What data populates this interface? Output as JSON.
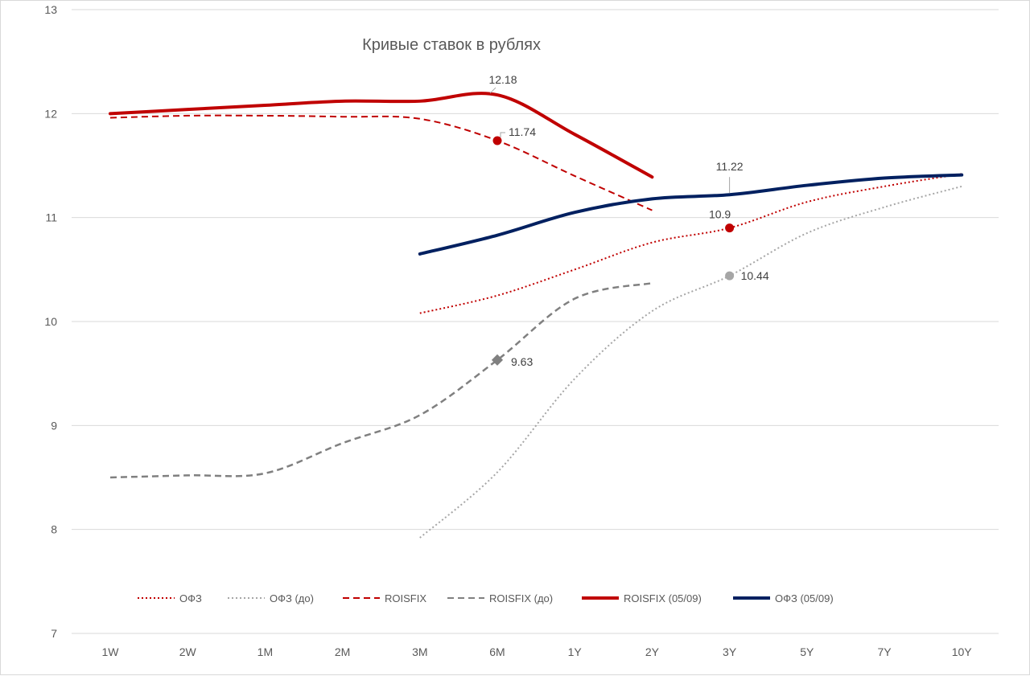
{
  "chart_data": {
    "type": "line",
    "title": "Кривые ставок в рублях",
    "xlabel": "",
    "ylabel": "",
    "categories": [
      "1W",
      "2W",
      "1M",
      "2M",
      "3M",
      "6M",
      "1Y",
      "2Y",
      "3Y",
      "5Y",
      "7Y",
      "10Y"
    ],
    "y_ticks": [
      "7",
      "8",
      "9",
      "10",
      "11",
      "12",
      "13"
    ],
    "ylim": [
      7,
      13
    ],
    "grid": true,
    "legend_position": "bottom",
    "series": [
      {
        "name": "ОФЗ",
        "color": "#c00000",
        "style": "dotted",
        "width": 2,
        "values": [
          null,
          null,
          null,
          null,
          10.08,
          10.25,
          10.5,
          10.76,
          10.9,
          11.15,
          11.3,
          11.42
        ]
      },
      {
        "name": "ОФЗ (до)",
        "color": "#a6a6a6",
        "style": "dotted",
        "width": 2,
        "values": [
          null,
          null,
          null,
          null,
          7.92,
          8.55,
          9.45,
          10.1,
          10.44,
          10.85,
          11.1,
          11.3
        ]
      },
      {
        "name": "ROISFIX",
        "color": "#c00000",
        "style": "dashed",
        "width": 2,
        "values": [
          11.96,
          11.98,
          11.98,
          11.97,
          11.95,
          11.74,
          11.4,
          11.07,
          null,
          null,
          null,
          null
        ]
      },
      {
        "name": "ROISFIX (до)",
        "color": "#808080",
        "style": "dashed",
        "width": 2.5,
        "values": [
          8.5,
          8.52,
          8.54,
          8.83,
          9.1,
          9.63,
          10.22,
          10.37,
          null,
          null,
          null,
          null
        ]
      },
      {
        "name": "ROISFIX (05/09)",
        "color": "#c00000",
        "style": "solid",
        "width": 4,
        "values": [
          12.0,
          12.04,
          12.08,
          12.12,
          12.12,
          12.18,
          11.8,
          11.39,
          null,
          null,
          null,
          null
        ]
      },
      {
        "name": "ОФЗ  (05/09)",
        "color": "#002060",
        "style": "solid",
        "width": 4,
        "values": [
          null,
          null,
          null,
          null,
          10.65,
          10.83,
          11.05,
          11.18,
          11.22,
          11.31,
          11.38,
          11.41
        ]
      }
    ],
    "annotations": [
      {
        "series": 4,
        "index": 5,
        "label": "12.18",
        "marker": "none"
      },
      {
        "series": 2,
        "index": 5,
        "label": "11.74",
        "marker": "circle"
      },
      {
        "series": 5,
        "index": 8,
        "label": "11.22",
        "marker": "none"
      },
      {
        "series": 0,
        "index": 8,
        "label": "10.9",
        "marker": "circle"
      },
      {
        "series": 1,
        "index": 8,
        "label": "10.44",
        "marker": "circle"
      },
      {
        "series": 3,
        "index": 5,
        "label": "9.63",
        "marker": "diamond"
      }
    ]
  }
}
